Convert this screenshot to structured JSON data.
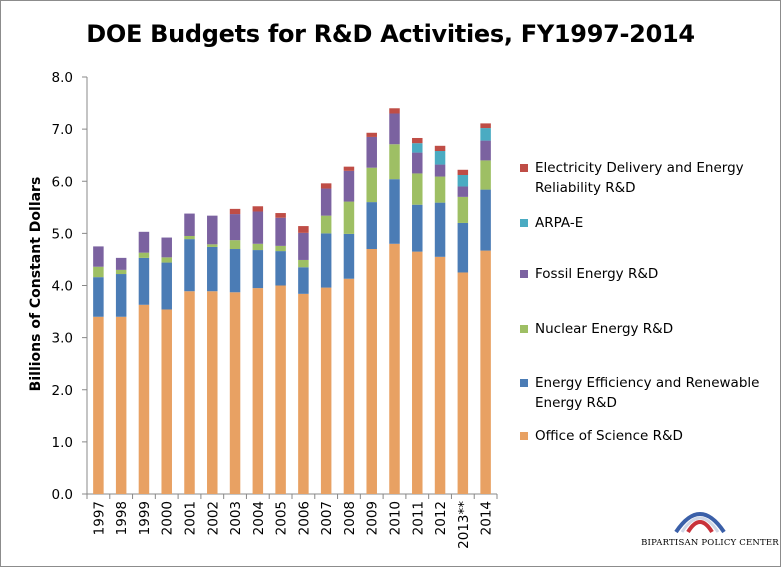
{
  "colors": {
    "office_of_science": "#e8a163",
    "energy_efficiency": "#4b7cb5",
    "nuclear": "#9ebf64",
    "fossil": "#7b62a0",
    "arpa_e": "#4aabc2",
    "electricity": "#bf4d46"
  },
  "chart_data": {
    "type": "bar",
    "stacked": true,
    "title": "DOE Budgets for R&D Activities, FY1997-2014",
    "xlabel": "",
    "ylabel": "Billions of Constant Dollars",
    "ylim": [
      0,
      8
    ],
    "yticks": [
      "0.0",
      "1.0",
      "2.0",
      "3.0",
      "4.0",
      "5.0",
      "6.0",
      "7.0",
      "8.0"
    ],
    "grid": false,
    "legend_position": "right",
    "categories": [
      "1997",
      "1998",
      "1999",
      "2000",
      "2001",
      "2002",
      "2003",
      "2004",
      "2005",
      "2006",
      "2007",
      "2008",
      "2009",
      "2010",
      "2011",
      "2012",
      "2013**",
      "2014"
    ],
    "series": [
      {
        "name": "Office of Science R&D",
        "color_key": "office_of_science",
        "values": [
          3.4,
          3.4,
          3.63,
          3.54,
          3.89,
          3.89,
          3.87,
          3.95,
          4.0,
          3.84,
          3.96,
          4.13,
          4.7,
          4.8,
          4.65,
          4.55,
          4.25,
          4.67
        ]
      },
      {
        "name": "Energy Efficiency and Renewable Energy R&D",
        "color_key": "energy_efficiency",
        "values": [
          0.76,
          0.82,
          0.9,
          0.9,
          1.0,
          0.85,
          0.83,
          0.73,
          0.66,
          0.51,
          1.04,
          0.86,
          0.9,
          1.24,
          0.9,
          1.04,
          0.95,
          1.17
        ]
      },
      {
        "name": "Nuclear Energy R&D",
        "color_key": "nuclear",
        "values": [
          0.2,
          0.08,
          0.1,
          0.1,
          0.06,
          0.05,
          0.17,
          0.12,
          0.1,
          0.14,
          0.34,
          0.62,
          0.66,
          0.67,
          0.6,
          0.5,
          0.5,
          0.56
        ]
      },
      {
        "name": "Fossil Energy R&D",
        "color_key": "fossil",
        "values": [
          0.39,
          0.23,
          0.4,
          0.38,
          0.43,
          0.55,
          0.5,
          0.62,
          0.54,
          0.52,
          0.52,
          0.59,
          0.59,
          0.59,
          0.4,
          0.23,
          0.2,
          0.38
        ]
      },
      {
        "name": "ARPA-E",
        "color_key": "arpa_e",
        "values": [
          0,
          0,
          0,
          0,
          0,
          0,
          0,
          0,
          0,
          0,
          0,
          0,
          0,
          0,
          0.18,
          0.26,
          0.22,
          0.24
        ]
      },
      {
        "name": "Electricity Delivery and Energy Reliability R&D",
        "color_key": "electricity",
        "values": [
          0,
          0,
          0,
          0,
          0,
          0,
          0.1,
          0.1,
          0.09,
          0.13,
          0.1,
          0.08,
          0.08,
          0.1,
          0.1,
          0.1,
          0.1,
          0.09
        ]
      }
    ]
  },
  "legend": [
    {
      "label": "Electricity Delivery and Energy Reliability R&D",
      "color_key": "electricity"
    },
    {
      "label": "ARPA-E",
      "color_key": "arpa_e"
    },
    {
      "label": "Fossil Energy R&D",
      "color_key": "fossil"
    },
    {
      "label": "Nuclear Energy R&D",
      "color_key": "nuclear"
    },
    {
      "label": "Energy Efficiency and Renewable Energy R&D",
      "color_key": "energy_efficiency"
    },
    {
      "label": "Office of Science R&D",
      "color_key": "office_of_science"
    }
  ],
  "logo": {
    "text": "BIPARTISAN POLICY CENTER",
    "icon": "arcs-logo-icon"
  }
}
